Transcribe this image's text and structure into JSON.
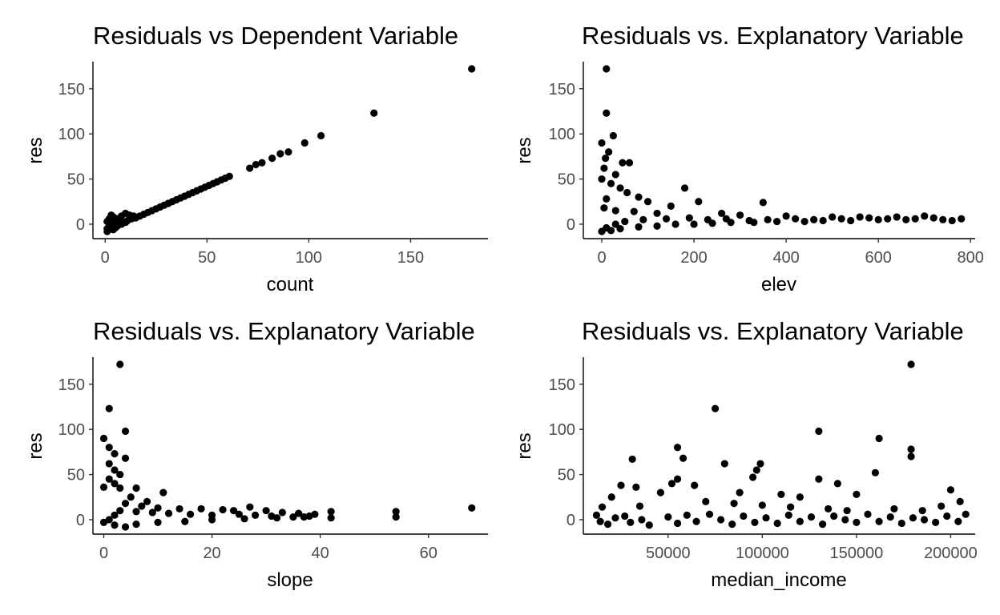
{
  "chart_data": [
    {
      "type": "scatter",
      "title": "Residuals vs Dependent Variable",
      "xlabel": "count",
      "ylabel": "res",
      "xlim": [
        -6,
        188
      ],
      "ylim": [
        -16,
        180
      ],
      "xticks": [
        0,
        50,
        100,
        150
      ],
      "xtick_labels": [
        "0",
        "50",
        "100",
        "150"
      ],
      "yticks": [
        0,
        50,
        100,
        150
      ],
      "ytick_labels": [
        "0",
        "50",
        "100",
        "150"
      ],
      "grid": false,
      "legend": "none",
      "points": [
        [
          180,
          172
        ],
        [
          132,
          123
        ],
        [
          106,
          98
        ],
        [
          98,
          90
        ],
        [
          90,
          80
        ],
        [
          86,
          78
        ],
        [
          82,
          73
        ],
        [
          77,
          68
        ],
        [
          74,
          66
        ],
        [
          71,
          62
        ],
        [
          61,
          53
        ],
        [
          59,
          51
        ],
        [
          57,
          49
        ],
        [
          55,
          47
        ],
        [
          53,
          45
        ],
        [
          51,
          43
        ],
        [
          49,
          41
        ],
        [
          47,
          39
        ],
        [
          45,
          37
        ],
        [
          43,
          35
        ],
        [
          41,
          33
        ],
        [
          39,
          31
        ],
        [
          37,
          29
        ],
        [
          35,
          27
        ],
        [
          33,
          25
        ],
        [
          31,
          23
        ],
        [
          29,
          21
        ],
        [
          27,
          19
        ],
        [
          25,
          17
        ],
        [
          23,
          15
        ],
        [
          21,
          13
        ],
        [
          19,
          11
        ],
        [
          17,
          9
        ],
        [
          15,
          7
        ],
        [
          13,
          6
        ],
        [
          11,
          4
        ],
        [
          9,
          2
        ],
        [
          7,
          1
        ],
        [
          5,
          0
        ],
        [
          3,
          -2
        ],
        [
          2,
          -3
        ],
        [
          1,
          -5
        ],
        [
          1,
          -8
        ],
        [
          2,
          -6
        ],
        [
          3,
          10
        ],
        [
          2,
          6
        ],
        [
          4,
          8
        ],
        [
          6,
          6
        ],
        [
          8,
          9
        ],
        [
          10,
          12
        ],
        [
          12,
          10
        ],
        [
          14,
          9
        ],
        [
          5,
          -4
        ],
        [
          4,
          -6
        ],
        [
          6,
          -2
        ],
        [
          8,
          0
        ],
        [
          10,
          2
        ],
        [
          3,
          4
        ],
        [
          2,
          0
        ],
        [
          1,
          3
        ]
      ]
    },
    {
      "type": "scatter",
      "title": "Residuals vs. Explanatory Variable",
      "xlabel": "elev",
      "ylabel": "res",
      "xlim": [
        -40,
        810
      ],
      "ylim": [
        -16,
        180
      ],
      "xticks": [
        0,
        200,
        400,
        600,
        800
      ],
      "xtick_labels": [
        "0",
        "200",
        "400",
        "600",
        "800"
      ],
      "yticks": [
        0,
        50,
        100,
        150
      ],
      "ytick_labels": [
        "0",
        "50",
        "100",
        "150"
      ],
      "grid": false,
      "legend": "none",
      "points": [
        [
          10,
          172
        ],
        [
          10,
          123
        ],
        [
          25,
          98
        ],
        [
          0,
          90
        ],
        [
          15,
          80
        ],
        [
          8,
          73
        ],
        [
          45,
          68
        ],
        [
          60,
          68
        ],
        [
          5,
          62
        ],
        [
          30,
          55
        ],
        [
          0,
          50
        ],
        [
          20,
          45
        ],
        [
          40,
          40
        ],
        [
          180,
          40
        ],
        [
          55,
          35
        ],
        [
          80,
          30
        ],
        [
          10,
          28
        ],
        [
          100,
          25
        ],
        [
          210,
          25
        ],
        [
          350,
          24
        ],
        [
          150,
          20
        ],
        [
          5,
          18
        ],
        [
          30,
          15
        ],
        [
          70,
          14
        ],
        [
          120,
          12
        ],
        [
          260,
          12
        ],
        [
          300,
          10
        ],
        [
          400,
          9
        ],
        [
          500,
          8
        ],
        [
          560,
          8
        ],
        [
          640,
          8
        ],
        [
          700,
          9
        ],
        [
          780,
          6
        ],
        [
          740,
          5
        ],
        [
          680,
          6
        ],
        [
          600,
          5
        ],
        [
          540,
          4
        ],
        [
          480,
          4
        ],
        [
          440,
          3
        ],
        [
          380,
          3
        ],
        [
          330,
          2
        ],
        [
          280,
          2
        ],
        [
          240,
          1
        ],
        [
          200,
          0
        ],
        [
          160,
          0
        ],
        [
          120,
          -2
        ],
        [
          80,
          -3
        ],
        [
          40,
          -5
        ],
        [
          20,
          -7
        ],
        [
          0,
          -8
        ],
        [
          10,
          -4
        ],
        [
          30,
          0
        ],
        [
          50,
          3
        ],
        [
          90,
          5
        ],
        [
          140,
          6
        ],
        [
          190,
          7
        ],
        [
          230,
          5
        ],
        [
          270,
          6
        ],
        [
          320,
          4
        ],
        [
          360,
          5
        ],
        [
          420,
          6
        ],
        [
          460,
          5
        ],
        [
          520,
          6
        ],
        [
          580,
          7
        ],
        [
          620,
          6
        ],
        [
          660,
          5
        ],
        [
          720,
          7
        ],
        [
          760,
          4
        ]
      ]
    },
    {
      "type": "scatter",
      "title": "Residuals vs. Explanatory Variable",
      "xlabel": "slope",
      "ylabel": "res",
      "xlim": [
        -2,
        71
      ],
      "ylim": [
        -16,
        180
      ],
      "xticks": [
        0,
        20,
        40,
        60
      ],
      "xtick_labels": [
        "0",
        "20",
        "40",
        "60"
      ],
      "yticks": [
        0,
        50,
        100,
        150
      ],
      "ytick_labels": [
        "0",
        "50",
        "100",
        "150"
      ],
      "grid": false,
      "legend": "none",
      "points": [
        [
          3,
          172
        ],
        [
          1,
          123
        ],
        [
          4,
          98
        ],
        [
          0,
          90
        ],
        [
          1,
          80
        ],
        [
          2,
          73
        ],
        [
          4,
          68
        ],
        [
          1,
          62
        ],
        [
          2,
          55
        ],
        [
          3,
          50
        ],
        [
          1,
          45
        ],
        [
          2,
          40
        ],
        [
          0,
          36
        ],
        [
          3,
          35
        ],
        [
          6,
          35
        ],
        [
          11,
          30
        ],
        [
          5,
          25
        ],
        [
          8,
          20
        ],
        [
          4,
          18
        ],
        [
          7,
          15
        ],
        [
          10,
          13
        ],
        [
          14,
          12
        ],
        [
          18,
          12
        ],
        [
          22,
          11
        ],
        [
          27,
          14
        ],
        [
          24,
          10
        ],
        [
          30,
          10
        ],
        [
          33,
          8
        ],
        [
          36,
          7
        ],
        [
          39,
          6
        ],
        [
          42,
          9
        ],
        [
          38,
          4
        ],
        [
          42,
          2
        ],
        [
          54,
          9
        ],
        [
          54,
          3
        ],
        [
          68,
          13
        ],
        [
          35,
          3
        ],
        [
          31,
          4
        ],
        [
          28,
          5
        ],
        [
          25,
          6
        ],
        [
          20,
          5
        ],
        [
          16,
          6
        ],
        [
          12,
          7
        ],
        [
          9,
          8
        ],
        [
          6,
          9
        ],
        [
          3,
          10
        ],
        [
          2,
          5
        ],
        [
          1,
          0
        ],
        [
          0,
          -3
        ],
        [
          2,
          -6
        ],
        [
          4,
          -8
        ],
        [
          6,
          -5
        ],
        [
          10,
          -3
        ],
        [
          15,
          -2
        ],
        [
          20,
          0
        ],
        [
          26,
          1
        ],
        [
          32,
          2
        ],
        [
          37,
          3
        ]
      ]
    },
    {
      "type": "scatter",
      "title": "Residuals vs. Explanatory Variable",
      "xlabel": "median_income",
      "ylabel": "res",
      "xlim": [
        5000,
        213000
      ],
      "ylim": [
        -16,
        180
      ],
      "xticks": [
        50000,
        100000,
        150000,
        200000
      ],
      "xtick_labels": [
        "50000",
        "100000",
        "150000",
        "200000"
      ],
      "yticks": [
        0,
        50,
        100,
        150
      ],
      "ytick_labels": [
        "0",
        "50",
        "100",
        "150"
      ],
      "grid": false,
      "legend": "none",
      "points": [
        [
          179000,
          172
        ],
        [
          75000,
          123
        ],
        [
          130000,
          98
        ],
        [
          162000,
          90
        ],
        [
          55000,
          80
        ],
        [
          179000,
          78
        ],
        [
          58000,
          68
        ],
        [
          31000,
          67
        ],
        [
          179000,
          70
        ],
        [
          80000,
          62
        ],
        [
          99000,
          62
        ],
        [
          97000,
          55
        ],
        [
          160000,
          52
        ],
        [
          95000,
          47
        ],
        [
          55000,
          45
        ],
        [
          130000,
          45
        ],
        [
          140000,
          40
        ],
        [
          52000,
          40
        ],
        [
          25000,
          38
        ],
        [
          33000,
          36
        ],
        [
          64000,
          38
        ],
        [
          200000,
          33
        ],
        [
          88000,
          30
        ],
        [
          110000,
          28
        ],
        [
          120000,
          25
        ],
        [
          150000,
          28
        ],
        [
          20000,
          25
        ],
        [
          15000,
          14
        ],
        [
          35000,
          15
        ],
        [
          46000,
          30
        ],
        [
          70000,
          20
        ],
        [
          85000,
          18
        ],
        [
          100000,
          16
        ],
        [
          115000,
          14
        ],
        [
          135000,
          12
        ],
        [
          145000,
          10
        ],
        [
          170000,
          12
        ],
        [
          185000,
          10
        ],
        [
          195000,
          15
        ],
        [
          205000,
          20
        ],
        [
          12000,
          5
        ],
        [
          14000,
          -2
        ],
        [
          18000,
          -5
        ],
        [
          22000,
          2
        ],
        [
          27000,
          4
        ],
        [
          30000,
          -3
        ],
        [
          36000,
          0
        ],
        [
          40000,
          -6
        ],
        [
          50000,
          3
        ],
        [
          55000,
          -4
        ],
        [
          60000,
          5
        ],
        [
          65000,
          -2
        ],
        [
          72000,
          6
        ],
        [
          78000,
          0
        ],
        [
          84000,
          -5
        ],
        [
          90000,
          4
        ],
        [
          96000,
          -3
        ],
        [
          102000,
          2
        ],
        [
          108000,
          -4
        ],
        [
          114000,
          5
        ],
        [
          120000,
          -2
        ],
        [
          126000,
          3
        ],
        [
          132000,
          -5
        ],
        [
          138000,
          4
        ],
        [
          144000,
          0
        ],
        [
          150000,
          -3
        ],
        [
          156000,
          6
        ],
        [
          162000,
          -2
        ],
        [
          168000,
          3
        ],
        [
          174000,
          -4
        ],
        [
          180000,
          2
        ],
        [
          186000,
          0
        ],
        [
          192000,
          -3
        ],
        [
          198000,
          4
        ],
        [
          204000,
          -2
        ],
        [
          208000,
          6
        ]
      ]
    }
  ]
}
